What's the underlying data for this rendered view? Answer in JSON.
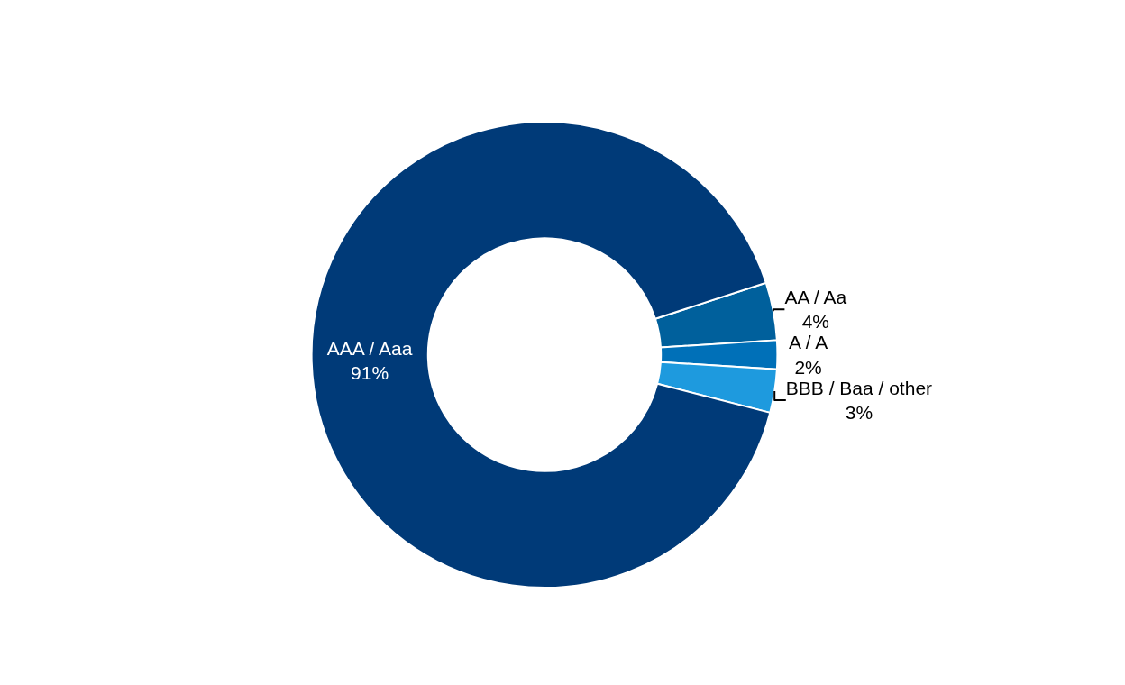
{
  "chart_data": {
    "type": "donut",
    "categories": [
      "AA / Aa",
      "A / A",
      "BBB / Baa / other",
      "AAA / Aaa"
    ],
    "values": [
      4,
      2,
      3,
      91
    ],
    "value_labels": [
      "4%",
      "2%",
      "3%",
      "91%"
    ],
    "colors": [
      "#00609c",
      "#0070b8",
      "#1e9ade",
      "#003a78"
    ],
    "legend": false
  }
}
